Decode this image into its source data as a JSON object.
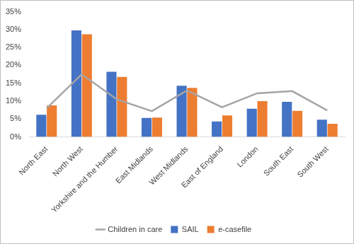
{
  "chart_data": {
    "type": "bar",
    "categories": [
      "North East",
      "North West",
      "Yorkshire and the Humber",
      "East Midlands",
      "West Midlands",
      "East of England",
      "London",
      "South East",
      "South West"
    ],
    "series": [
      {
        "name": "SAIL",
        "color": "#4472c4",
        "type": "bar",
        "values": [
          6.2,
          29.8,
          18.2,
          5.3,
          14.3,
          4.3,
          7.9,
          9.8,
          4.8
        ]
      },
      {
        "name": "e-casefile",
        "color": "#ed7d31",
        "type": "bar",
        "values": [
          8.8,
          28.7,
          16.8,
          5.4,
          13.7,
          6.0,
          10.0,
          7.3,
          3.7
        ]
      },
      {
        "name": "Children in care",
        "color": "#a5a5a5",
        "type": "line",
        "values": [
          8.0,
          17.5,
          10.5,
          7.2,
          13.0,
          8.3,
          12.2,
          12.8,
          7.4
        ]
      }
    ],
    "ylim": [
      0,
      35
    ],
    "yticks": [
      {
        "value": 0,
        "label": "0%"
      },
      {
        "value": 5,
        "label": "5%"
      },
      {
        "value": 10,
        "label": "10%"
      },
      {
        "value": 15,
        "label": "15%"
      },
      {
        "value": 20,
        "label": "20%"
      },
      {
        "value": 25,
        "label": "25%"
      },
      {
        "value": 30,
        "label": "30%"
      },
      {
        "value": 35,
        "label": "35%"
      }
    ],
    "grid": false,
    "legend": "bottom"
  }
}
